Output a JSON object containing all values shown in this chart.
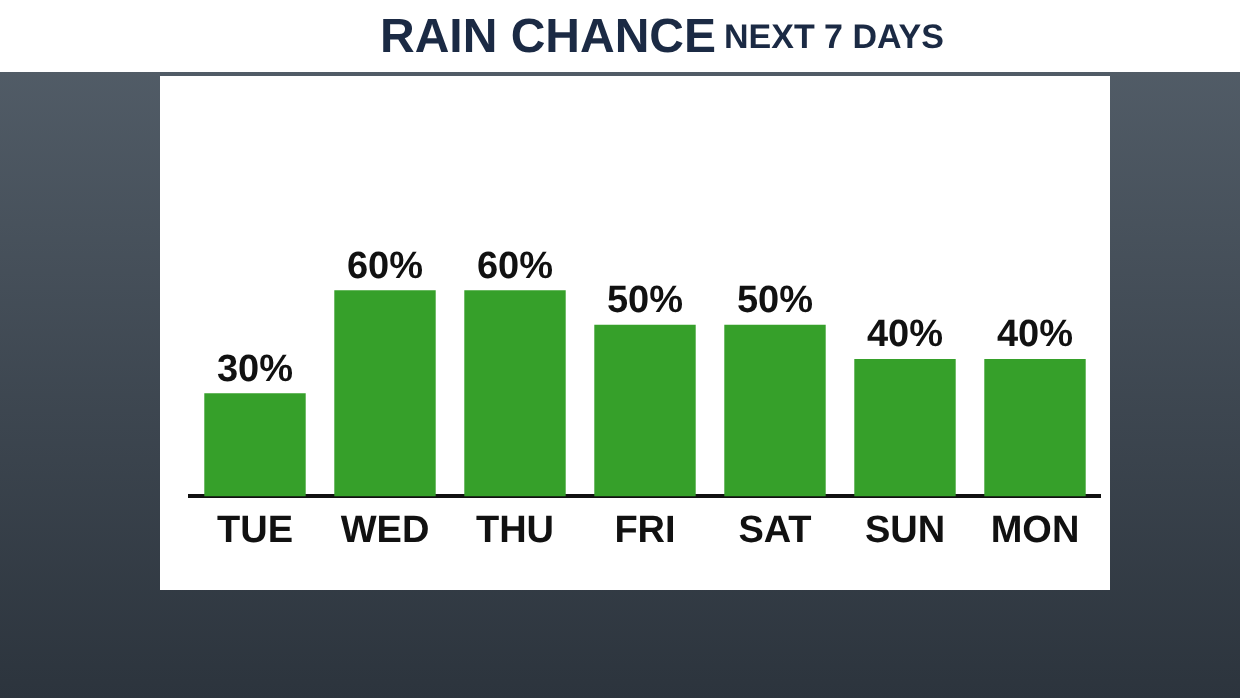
{
  "chart_data": {
    "type": "bar",
    "title": "RAIN CHANCE",
    "subtitle": "NEXT 7 DAYS",
    "categories": [
      "TUE",
      "WED",
      "THU",
      "FRI",
      "SAT",
      "SUN",
      "MON"
    ],
    "values": [
      30,
      60,
      60,
      50,
      50,
      40,
      40
    ],
    "value_labels": [
      "30%",
      "60%",
      "60%",
      "50%",
      "50%",
      "40%",
      "40%"
    ],
    "color": "#36a02a",
    "grid": false,
    "legend": false
  }
}
